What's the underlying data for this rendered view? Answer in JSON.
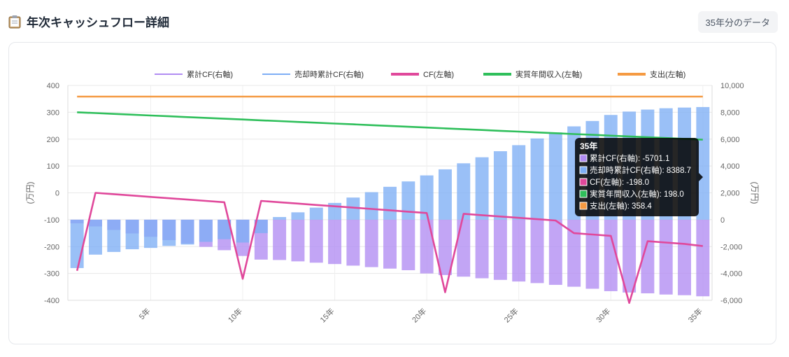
{
  "header": {
    "title": "年次キャッシュフロー詳細",
    "badge": "35年分のデータ",
    "icon": "clipboard-icon"
  },
  "chart_data": {
    "type": "bar",
    "x": [
      1,
      2,
      3,
      4,
      5,
      6,
      7,
      8,
      9,
      10,
      11,
      12,
      13,
      14,
      15,
      16,
      17,
      18,
      19,
      20,
      21,
      22,
      23,
      24,
      25,
      26,
      27,
      28,
      29,
      30,
      31,
      32,
      33,
      34,
      35
    ],
    "x_tick_labels": [
      {
        "x": 5,
        "label": "5年"
      },
      {
        "x": 10,
        "label": "10年"
      },
      {
        "x": 15,
        "label": "15年"
      },
      {
        "x": 20,
        "label": "20年"
      },
      {
        "x": 25,
        "label": "25年"
      },
      {
        "x": 30,
        "label": "30年"
      },
      {
        "x": 35,
        "label": "35年"
      }
    ],
    "left_axis": {
      "label": "(万円)",
      "ylim": [
        -400,
        400
      ],
      "ticks": [
        -400,
        -300,
        -200,
        -100,
        0,
        100,
        200,
        300,
        400
      ]
    },
    "right_axis": {
      "label": "(万円)",
      "ylim": [
        -6000,
        10000
      ],
      "ticks": [
        "-6,000",
        "-4,000",
        "-2,000",
        "0",
        "2,000",
        "4,000",
        "6,000",
        "8,000",
        "10,000"
      ],
      "tick_values": [
        -6000,
        -4000,
        -2000,
        0,
        2000,
        4000,
        6000,
        8000,
        10000
      ]
    },
    "grid": true,
    "legend_position": "top-center",
    "series": [
      {
        "name": "累計CF(右軸)",
        "type": "bar",
        "axis": "right",
        "color": "#b18cf2",
        "values": [
          -270,
          -500,
          -760,
          -1020,
          -1270,
          -1520,
          -1770,
          -2020,
          -2270,
          -2700,
          -2970,
          -3000,
          -3100,
          -3200,
          -3300,
          -3420,
          -3530,
          -3640,
          -3760,
          -4000,
          -4120,
          -4240,
          -4360,
          -4480,
          -4600,
          -4720,
          -4850,
          -4990,
          -5140,
          -5320,
          -5420,
          -5480,
          -5570,
          -5620,
          -5701.1
        ]
      },
      {
        "name": "売却時累計CF(右軸)",
        "type": "bar",
        "axis": "right",
        "color": "#7eaef5",
        "values": [
          -3600,
          -2600,
          -2400,
          -2200,
          -2100,
          -1950,
          -1850,
          -1650,
          -1450,
          -1700,
          -1000,
          200,
          550,
          900,
          1250,
          1650,
          2050,
          2450,
          2850,
          3300,
          3750,
          4200,
          4650,
          5100,
          5550,
          6050,
          6500,
          6950,
          7350,
          7800,
          8050,
          8200,
          8300,
          8350,
          8388.7
        ]
      },
      {
        "name": "CF(左軸)",
        "type": "line",
        "axis": "left",
        "color": "#e0489b",
        "values": [
          -290,
          0,
          -5,
          -10,
          -15,
          -20,
          -25,
          -30,
          -35,
          -320,
          -30,
          -35,
          -40,
          -45,
          -50,
          -55,
          -60,
          -65,
          -70,
          -75,
          -370,
          -78,
          -83,
          -88,
          -93,
          -98,
          -103,
          -150,
          -155,
          -160,
          -410,
          -180,
          -185,
          -190,
          -198.0
        ]
      },
      {
        "name": "実質年間収入(左軸)",
        "type": "line",
        "axis": "left",
        "color": "#2fbf5b",
        "values": [
          300,
          297,
          294,
          291,
          288,
          285,
          282,
          279,
          276,
          273,
          270,
          267,
          264,
          261,
          258,
          255,
          252,
          249,
          246,
          243,
          240,
          237,
          234,
          231,
          228,
          225,
          222,
          219,
          216,
          213,
          210,
          207,
          204,
          201,
          198.0
        ]
      },
      {
        "name": "支出(左軸)",
        "type": "line",
        "axis": "left",
        "color": "#f59a42",
        "values": [
          358.4,
          358.4,
          358.4,
          358.4,
          358.4,
          358.4,
          358.4,
          358.4,
          358.4,
          358.4,
          358.4,
          358.4,
          358.4,
          358.4,
          358.4,
          358.4,
          358.4,
          358.4,
          358.4,
          358.4,
          358.4,
          358.4,
          358.4,
          358.4,
          358.4,
          358.4,
          358.4,
          358.4,
          358.4,
          358.4,
          358.4,
          358.4,
          358.4,
          358.4,
          358.4
        ]
      }
    ],
    "tooltip": {
      "title": "35年",
      "rows": [
        {
          "text": "累計CF(右軸): -5701.1",
          "color": "#b18cf2"
        },
        {
          "text": "売却時累計CF(右軸): 8388.7",
          "color": "#7eaef5"
        },
        {
          "text": "CF(左軸): -198.0",
          "color": "#e0489b"
        },
        {
          "text": "実質年間収入(左軸): 198.0",
          "color": "#2fbf5b"
        },
        {
          "text": "支出(左軸): 358.4",
          "color": "#f59a42"
        }
      ]
    }
  }
}
